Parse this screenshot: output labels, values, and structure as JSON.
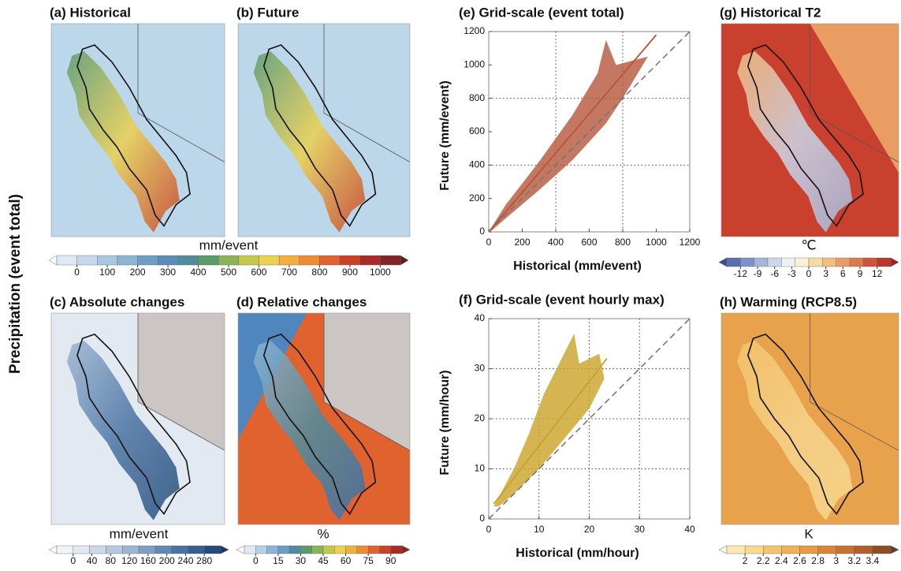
{
  "side_label": "Precipitation (event total)",
  "maps": [
    {
      "title": "(a) Historical",
      "style": "precip"
    },
    {
      "title": "(b) Future",
      "style": "precip"
    },
    {
      "title": "(c) Absolute changes",
      "style": "abs"
    },
    {
      "title": "(d) Relative changes",
      "style": "rel"
    },
    {
      "title": "(g) Historical T2",
      "style": "temp"
    },
    {
      "title": "(h) Warming (RCP8.5)",
      "style": "warm"
    }
  ],
  "colorbars": [
    {
      "label": "mm/event",
      "ticks": [
        0,
        100,
        200,
        300,
        400,
        500,
        600,
        700,
        800,
        900,
        1000
      ],
      "colors": [
        "#ffffff",
        "#dfe9f3",
        "#c6d9ea",
        "#a9c7e0",
        "#8db4d5",
        "#6e9dc6",
        "#5b8cb8",
        "#4f8d9c",
        "#5c9a6e",
        "#8cb35a",
        "#c3c74e",
        "#ecd04f",
        "#f0b03f",
        "#ec8c37",
        "#e0622f",
        "#c94127",
        "#a82c26",
        "#7f2626",
        "#5a1f22"
      ]
    },
    {
      "label": "mm/event",
      "ticks": [
        0,
        40,
        80,
        120,
        160,
        200,
        240,
        280
      ],
      "colors": [
        "#ffffff",
        "#f0f3f7",
        "#e1e8f0",
        "#cdd9e7",
        "#b6c8dd",
        "#9cb6d3",
        "#7fa0c4",
        "#6289b5",
        "#4a73a3",
        "#365f90",
        "#244b7a",
        "#173865"
      ]
    },
    {
      "label": "%",
      "ticks": [
        0,
        15,
        30,
        45,
        60,
        75,
        90
      ],
      "colors": [
        "#ffffff",
        "#dfe9f3",
        "#b6d0e6",
        "#8db4d5",
        "#6a9cc6",
        "#4f8d9c",
        "#5c9a6e",
        "#8cb35a",
        "#c3c74e",
        "#ecd04f",
        "#f0b03f",
        "#ec8c37",
        "#e0622f",
        "#c94127",
        "#a82c26",
        "#7f2626"
      ]
    },
    {
      "label": "℃",
      "ticks": [
        -12,
        -9,
        -6,
        -3,
        0,
        3,
        6,
        9,
        12
      ],
      "colors": [
        "#3a4f8f",
        "#5870ad",
        "#7d93c6",
        "#a6b6d9",
        "#cdd7ea",
        "#eef2f7",
        "#fbf2d6",
        "#f6dca4",
        "#f0bf80",
        "#e99d63",
        "#dd7a4c",
        "#cd5539",
        "#b8382c",
        "#9b2226"
      ]
    },
    {
      "label": "K",
      "ticks": [
        2,
        2.2,
        2.4,
        2.6,
        2.8,
        3,
        3.2,
        3.4
      ],
      "colors": [
        "#fff8e1",
        "#fbe8b4",
        "#f7d98f",
        "#f2c56c",
        "#edb155",
        "#e59c43",
        "#d98537",
        "#c8702f",
        "#b05f2a",
        "#8c4c25",
        "#6a3a21"
      ]
    }
  ],
  "chart_data": [
    {
      "type": "scatter",
      "title": "(e) Grid-scale (event total)",
      "x_label": "Historical (mm/event)",
      "y_label": "Future (mm/event)",
      "xlim": [
        0,
        1200
      ],
      "ylim": [
        0,
        1200
      ],
      "xticks": [
        0,
        200,
        400,
        600,
        800,
        1000,
        1200
      ],
      "yticks": [
        0,
        200,
        400,
        600,
        800,
        1000,
        1200
      ],
      "grid": [
        400,
        800
      ],
      "color": "#b5553a",
      "cloud": {
        "x": [
          0,
          100,
          300,
          500,
          650,
          700,
          760,
          950,
          800,
          700,
          500,
          300,
          100,
          20
        ],
        "y": [
          0,
          160,
          420,
          700,
          950,
          1150,
          1000,
          1050,
          800,
          650,
          430,
          250,
          80,
          10
        ]
      },
      "fit_line": {
        "x": [
          0,
          1000
        ],
        "y": [
          0,
          1180
        ]
      },
      "reference_line": {
        "x": [
          0,
          1200
        ],
        "y": [
          0,
          1200
        ]
      }
    },
    {
      "type": "scatter",
      "title": "(f) Grid-scale (event hourly max)",
      "x_label": "Historical (mm/hour)",
      "y_label": "Future (mm/hour)",
      "xlim": [
        0,
        40
      ],
      "ylim": [
        0,
        40
      ],
      "xticks": [
        0,
        10,
        20,
        30,
        40
      ],
      "yticks": [
        0,
        10,
        20,
        30,
        40
      ],
      "grid": [
        10,
        20,
        30
      ],
      "color": "#c9a227",
      "cloud": {
        "x": [
          1,
          5,
          8,
          11,
          14,
          17,
          18,
          22,
          23,
          20,
          15,
          10,
          5,
          2
        ],
        "y": [
          2.5,
          10,
          17,
          25,
          31,
          37,
          31,
          33,
          28,
          22,
          16,
          10,
          5,
          2.5
        ]
      },
      "fit_line": {
        "x": [
          1,
          23.5
        ],
        "y": [
          3,
          32
        ]
      },
      "reference_line": {
        "x": [
          0,
          40
        ],
        "y": [
          0,
          40
        ]
      }
    }
  ]
}
